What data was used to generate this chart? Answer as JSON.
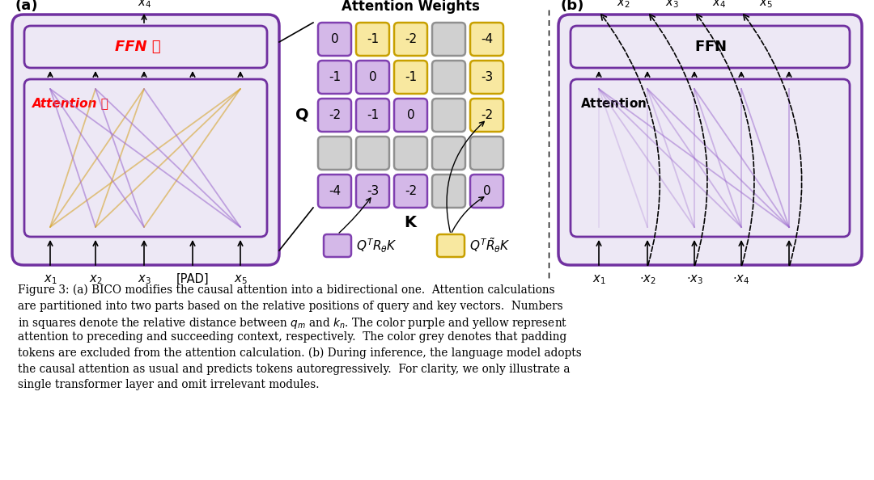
{
  "grid_values": [
    [
      "0",
      "-1",
      "-2",
      "",
      "-4"
    ],
    [
      "-1",
      "0",
      "-1",
      "",
      "-3"
    ],
    [
      "-2",
      "-1",
      "0",
      "",
      "-2"
    ],
    [
      "",
      "",
      "",
      "",
      ""
    ],
    [
      "-4",
      "-3",
      "-2",
      "",
      "0"
    ]
  ],
  "grid_colors": [
    [
      "purple",
      "yellow",
      "yellow",
      "gray",
      "yellow"
    ],
    [
      "purple",
      "purple",
      "yellow",
      "gray",
      "yellow"
    ],
    [
      "purple",
      "purple",
      "purple",
      "gray",
      "yellow"
    ],
    [
      "gray",
      "gray",
      "gray",
      "gray",
      "gray"
    ],
    [
      "purple",
      "purple",
      "purple",
      "gray",
      "purple"
    ]
  ],
  "purple_fill": "#d4b8e8",
  "yellow_fill": "#f8e8a0",
  "gray_fill": "#d0d0d0",
  "purple_border": "#8040b0",
  "yellow_border": "#c8a000",
  "gray_border": "#909090",
  "box_fill": "#ede8f5",
  "box_border": "#7030a0",
  "line_purple": "#9966cc",
  "line_yellow": "#d4a020",
  "caption": "Figure 3: (a) BICO modifies the causal attention into a bidirectional one.  Attention calculations are partitioned into two parts based on the relative positions of query and key vectors.  Numbers in squares denote the relative distance between $q_m$ and $k_n$. The color purple and yellow represent attention to preceding and succeeding context, respectively.  The color grey denotes that padding tokens are excluded from the attention calculation. (b) During inference, the language model adopts the causal attention as usual and predicts tokens autoregressively.  For clarity, we only illustrate a single transformer layer and omit irrelevant modules."
}
